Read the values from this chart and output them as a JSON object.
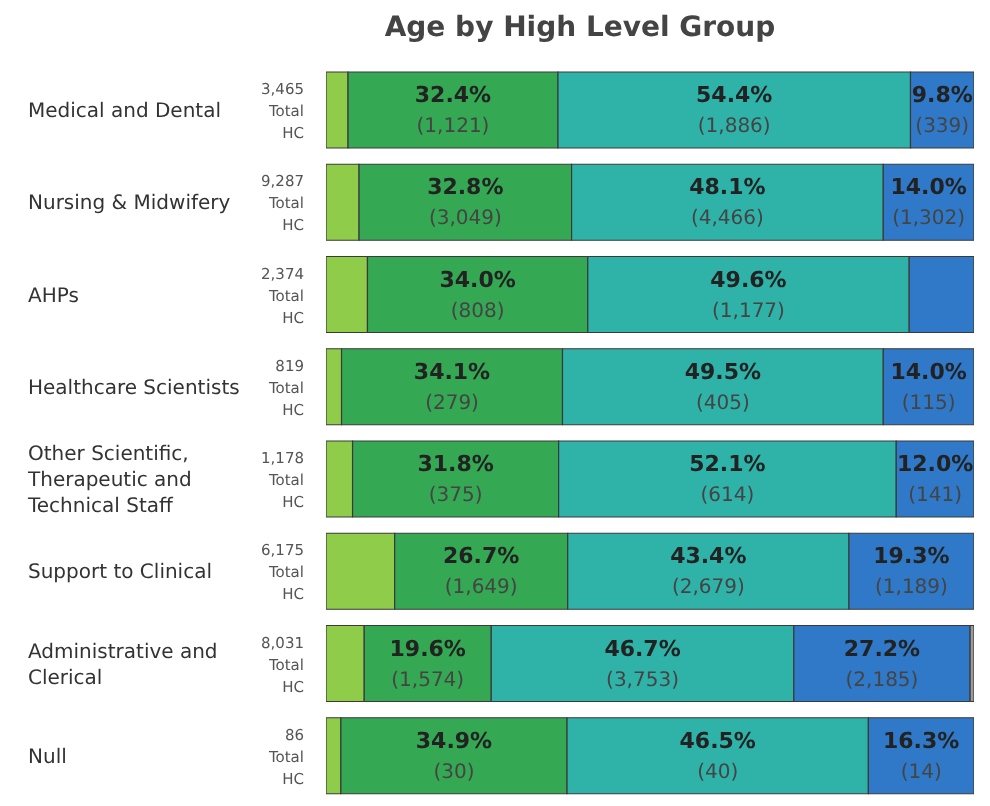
{
  "chart_data": {
    "type": "bar",
    "orientation": "horizontal",
    "stacked": true,
    "title": "Age by High Level Group",
    "categories": [
      "Medical and Dental",
      "Nursing & Midwifery",
      "AHPs",
      "Healthcare Scientists",
      "Other Scientific, Therapeutic and Technical Staff",
      "Support to Clinical",
      "Administrative and Clerical",
      "Null"
    ],
    "xlim": [
      0,
      100
    ],
    "series": [
      {
        "color": "#8fcc4a",
        "values": [
          3.4,
          5.1,
          6.4,
          2.4,
          4.1,
          10.6,
          5.9,
          2.3
        ]
      },
      {
        "color": "#35a853",
        "values": [
          32.4,
          32.8,
          34.0,
          34.1,
          31.8,
          26.7,
          19.6,
          34.9
        ],
        "value_labels": [
          "32.4%\n(1,121)",
          "32.8%\n(3,049)",
          "34.0%\n(808)",
          "34.1%\n(279)",
          "31.8%\n(375)",
          "26.7%\n(1,649)",
          "19.6%\n(1,574)",
          "34.9%\n(30)"
        ]
      },
      {
        "color": "#2fb3a9",
        "values": [
          54.4,
          48.1,
          49.6,
          49.5,
          52.1,
          43.4,
          46.7,
          46.5
        ],
        "value_labels": [
          "54.4%\n(1,886)",
          "48.1%\n(4,466)",
          "49.6%\n(1,177)",
          "49.5%\n(405)",
          "52.1%\n(614)",
          "43.4%\n(2,679)",
          "46.7%\n(3,753)",
          "46.5%\n(40)"
        ]
      },
      {
        "color": "#3079c8",
        "values": [
          9.8,
          14.0,
          10.0,
          14.0,
          12.0,
          19.3,
          27.2,
          16.3
        ],
        "value_labels": [
          "9.8%\n(339)",
          "14.0%\n(1,302)",
          null,
          "14.0%\n(115)",
          "12.0%\n(141)",
          "19.3%\n(1,189)",
          "27.2%\n(2,185)",
          "16.3%\n(14)"
        ]
      },
      {
        "color": "#9a9a9a",
        "values": [
          null,
          null,
          null,
          null,
          null,
          null,
          0.6,
          null
        ]
      }
    ],
    "annotations": [
      "3,465 Total HC",
      "9,287 Total HC",
      "2,374 Total HC",
      "819 Total HC",
      "1,178 Total HC",
      "6,175 Total HC",
      "8,031 Total HC",
      "86 Total HC"
    ]
  }
}
